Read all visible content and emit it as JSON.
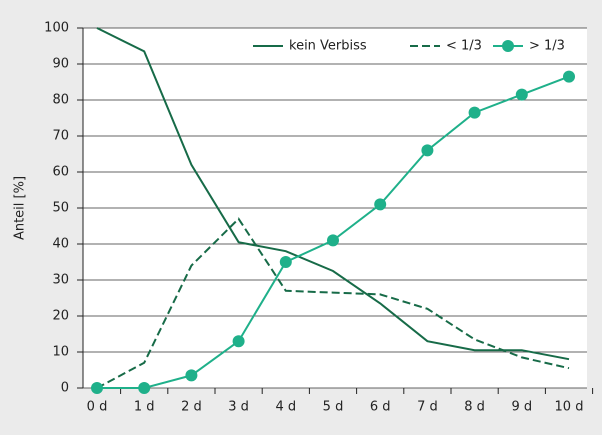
{
  "chart_data": {
    "type": "line",
    "ylabel": "Anteil [%]",
    "categories": [
      "0 d",
      "1 d",
      "2 d",
      "3 d",
      "4 d",
      "5 d",
      "6 d",
      "7 d",
      "8 d",
      "9 d",
      "10 d"
    ],
    "series": [
      {
        "name": "kein Verbiss",
        "color": "#176b48",
        "dash": false,
        "markers": false,
        "values": [
          100,
          93.5,
          62,
          40.5,
          38,
          32.5,
          23.5,
          13,
          10.5,
          10.5,
          8
        ]
      },
      {
        "name": "< 1/3",
        "color": "#176b48",
        "dash": true,
        "markers": false,
        "values": [
          0,
          7,
          34,
          47,
          27,
          26.5,
          26,
          22,
          13.5,
          8.5,
          5.5
        ]
      },
      {
        "name": "> 1/3",
        "color": "#1fb08a",
        "dash": false,
        "markers": true,
        "values": [
          0,
          0,
          3.5,
          13,
          35,
          41,
          51,
          66,
          76.5,
          81.5,
          86.5
        ]
      }
    ],
    "ylim": [
      0,
      100
    ],
    "yticks": [
      0,
      10,
      20,
      30,
      40,
      50,
      60,
      70,
      80,
      90,
      100
    ],
    "grid": true,
    "legend": "top-right"
  }
}
